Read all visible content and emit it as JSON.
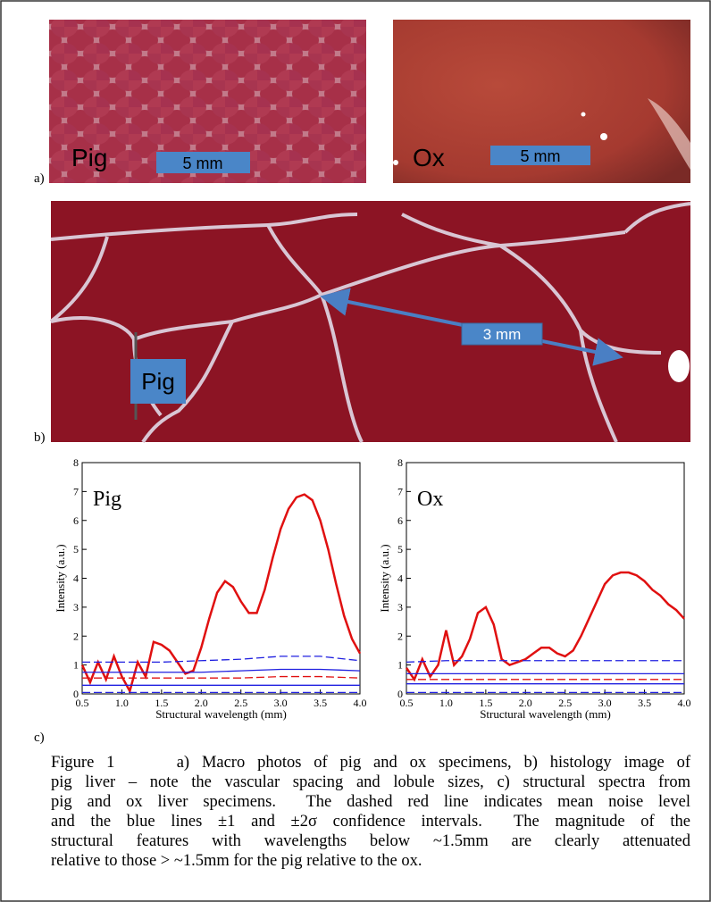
{
  "figure": {
    "panel_a": {
      "label": "a)",
      "left_label": "Pig",
      "left_scale": "5 mm",
      "right_label": "Ox",
      "right_scale": "5 mm"
    },
    "panel_b": {
      "label": "b)",
      "scale": "3 mm",
      "specimen": "Pig"
    },
    "panel_c": {
      "label": "c)"
    }
  },
  "chart_data": [
    {
      "type": "line",
      "annotation": "Pig",
      "ylabel": "Intensity (a.u.)",
      "xlabel": "Structural wavelength (mm)",
      "xlim": [
        0.5,
        4.0
      ],
      "ylim": [
        0,
        8
      ],
      "yticks": [
        0,
        1,
        2,
        3,
        4,
        5,
        6,
        7,
        8
      ],
      "xticks": [
        0.5,
        {
          "value": 1,
          "label": "1.0"
        },
        1.5,
        {
          "value": 2,
          "label": "2.0"
        },
        2.5,
        {
          "value": 3,
          "label": "3.0"
        },
        3.5,
        {
          "value": 4,
          "label": "4.0"
        }
      ],
      "x": [
        0.5,
        0.6,
        0.7,
        0.8,
        0.9,
        1.0,
        1.1,
        1.2,
        1.3,
        1.4,
        1.5,
        1.6,
        1.7,
        1.8,
        1.9,
        2.0,
        2.1,
        2.2,
        2.3,
        2.4,
        2.5,
        2.6,
        2.7,
        2.8,
        2.9,
        3.0,
        3.1,
        3.2,
        3.3,
        3.4,
        3.5,
        3.6,
        3.7,
        3.8,
        3.9,
        4.0
      ],
      "series": [
        {
          "color": "#e01010",
          "dash": false,
          "values": [
            1.0,
            0.4,
            1.1,
            0.5,
            1.3,
            0.6,
            0.1,
            1.1,
            0.6,
            1.8,
            1.7,
            1.5,
            1.1,
            0.7,
            0.8,
            1.6,
            2.6,
            3.5,
            3.9,
            3.7,
            3.2,
            2.8,
            2.8,
            3.6,
            4.7,
            5.7,
            6.4,
            6.8,
            6.9,
            6.7,
            6.0,
            5.0,
            3.8,
            2.7,
            1.9,
            1.4
          ]
        },
        {
          "color": "#2020e0",
          "dash": true,
          "x": [
            0.5,
            1.0,
            1.5,
            2.0,
            2.5,
            3.0,
            3.5,
            4.0
          ],
          "values": [
            1.1,
            1.1,
            1.1,
            1.15,
            1.2,
            1.3,
            1.3,
            1.15
          ]
        },
        {
          "color": "#2020e0",
          "dash": false,
          "x": [
            0.5,
            1.0,
            1.5,
            2.0,
            2.5,
            3.0,
            3.5,
            4.0
          ],
          "values": [
            0.75,
            0.75,
            0.75,
            0.75,
            0.8,
            0.85,
            0.85,
            0.8
          ]
        },
        {
          "color": "#e01010",
          "dash": true,
          "x": [
            0.5,
            1.0,
            1.5,
            2.0,
            2.5,
            3.0,
            3.5,
            4.0
          ],
          "values": [
            0.55,
            0.55,
            0.55,
            0.55,
            0.55,
            0.6,
            0.6,
            0.55
          ]
        },
        {
          "color": "#2020e0",
          "dash": false,
          "x": [
            0.5,
            1.0,
            1.5,
            2.0,
            2.5,
            3.0,
            3.5,
            4.0
          ],
          "values": [
            0.3,
            0.3,
            0.3,
            0.3,
            0.3,
            0.3,
            0.3,
            0.3
          ]
        },
        {
          "color": "#2020e0",
          "dash": true,
          "x": [
            0.5,
            1.0,
            1.5,
            2.0,
            2.5,
            3.0,
            3.5,
            4.0
          ],
          "values": [
            0.05,
            0.05,
            0.05,
            0.05,
            0.05,
            0.05,
            0.05,
            0.05
          ]
        }
      ]
    },
    {
      "type": "line",
      "annotation": "Ox",
      "ylabel": "Intensity (a.u.)",
      "xlabel": "Structural wavelength (mm)",
      "xlim": [
        0.5,
        4.0
      ],
      "ylim": [
        0,
        8
      ],
      "yticks": [
        0,
        1,
        2,
        3,
        4,
        5,
        6,
        7,
        8
      ],
      "xticks": [
        0.5,
        {
          "value": 1,
          "label": "1.0"
        },
        1.5,
        {
          "value": 2,
          "label": "2.0"
        },
        2.5,
        {
          "value": 3,
          "label": "3.0"
        },
        3.5,
        {
          "value": 4,
          "label": "4.0"
        }
      ],
      "x": [
        0.5,
        0.6,
        0.7,
        0.8,
        0.9,
        1.0,
        1.1,
        1.2,
        1.3,
        1.4,
        1.5,
        1.6,
        1.7,
        1.8,
        1.9,
        2.0,
        2.1,
        2.2,
        2.3,
        2.4,
        2.5,
        2.6,
        2.7,
        2.8,
        2.9,
        3.0,
        3.1,
        3.2,
        3.3,
        3.4,
        3.5,
        3.6,
        3.7,
        3.8,
        3.9,
        4.0
      ],
      "series": [
        {
          "color": "#e01010",
          "dash": false,
          "values": [
            0.9,
            0.5,
            1.2,
            0.6,
            1.0,
            2.2,
            1.0,
            1.3,
            1.9,
            2.8,
            3.0,
            2.4,
            1.2,
            1.0,
            1.1,
            1.2,
            1.4,
            1.6,
            1.6,
            1.4,
            1.3,
            1.5,
            2.0,
            2.6,
            3.2,
            3.8,
            4.1,
            4.2,
            4.2,
            4.1,
            3.9,
            3.6,
            3.4,
            3.1,
            2.9,
            2.6
          ]
        },
        {
          "color": "#2020e0",
          "dash": true,
          "x": [
            0.5,
            1.0,
            1.5,
            2.0,
            2.5,
            3.0,
            3.5,
            4.0
          ],
          "values": [
            1.1,
            1.15,
            1.15,
            1.15,
            1.15,
            1.15,
            1.15,
            1.15
          ]
        },
        {
          "color": "#2020e0",
          "dash": false,
          "x": [
            0.5,
            1.0,
            1.5,
            2.0,
            2.5,
            3.0,
            3.5,
            4.0
          ],
          "values": [
            0.7,
            0.7,
            0.7,
            0.7,
            0.7,
            0.7,
            0.7,
            0.7
          ]
        },
        {
          "color": "#e01010",
          "dash": true,
          "x": [
            0.5,
            1.0,
            1.5,
            2.0,
            2.5,
            3.0,
            3.5,
            4.0
          ],
          "values": [
            0.5,
            0.5,
            0.5,
            0.5,
            0.5,
            0.5,
            0.5,
            0.5
          ]
        },
        {
          "color": "#2020e0",
          "dash": false,
          "x": [
            0.5,
            1.0,
            1.5,
            2.0,
            2.5,
            3.0,
            3.5,
            4.0
          ],
          "values": [
            0.35,
            0.35,
            0.35,
            0.35,
            0.35,
            0.35,
            0.35,
            0.35
          ]
        },
        {
          "color": "#2020e0",
          "dash": true,
          "x": [
            0.5,
            1.0,
            1.5,
            2.0,
            2.5,
            3.0,
            3.5,
            4.0
          ],
          "values": [
            0.05,
            0.05,
            0.05,
            0.05,
            0.05,
            0.05,
            0.05,
            0.05
          ]
        }
      ]
    }
  ],
  "caption": [
    "Figure 1     a) Macro photos of pig and ox specimens, b) histology image of",
    "pig liver – note the vascular spacing and lobule sizes, c) structural spectra from",
    "pig and ox liver specimens.  The dashed red line indicates mean noise level",
    "and the blue lines ±1 and ±2σ confidence intervals.  The magnitude of the",
    "structural features with wavelengths below ~1.5mm are clearly attenuated",
    "relative to those > ~1.5mm for the pig relative to the ox."
  ]
}
